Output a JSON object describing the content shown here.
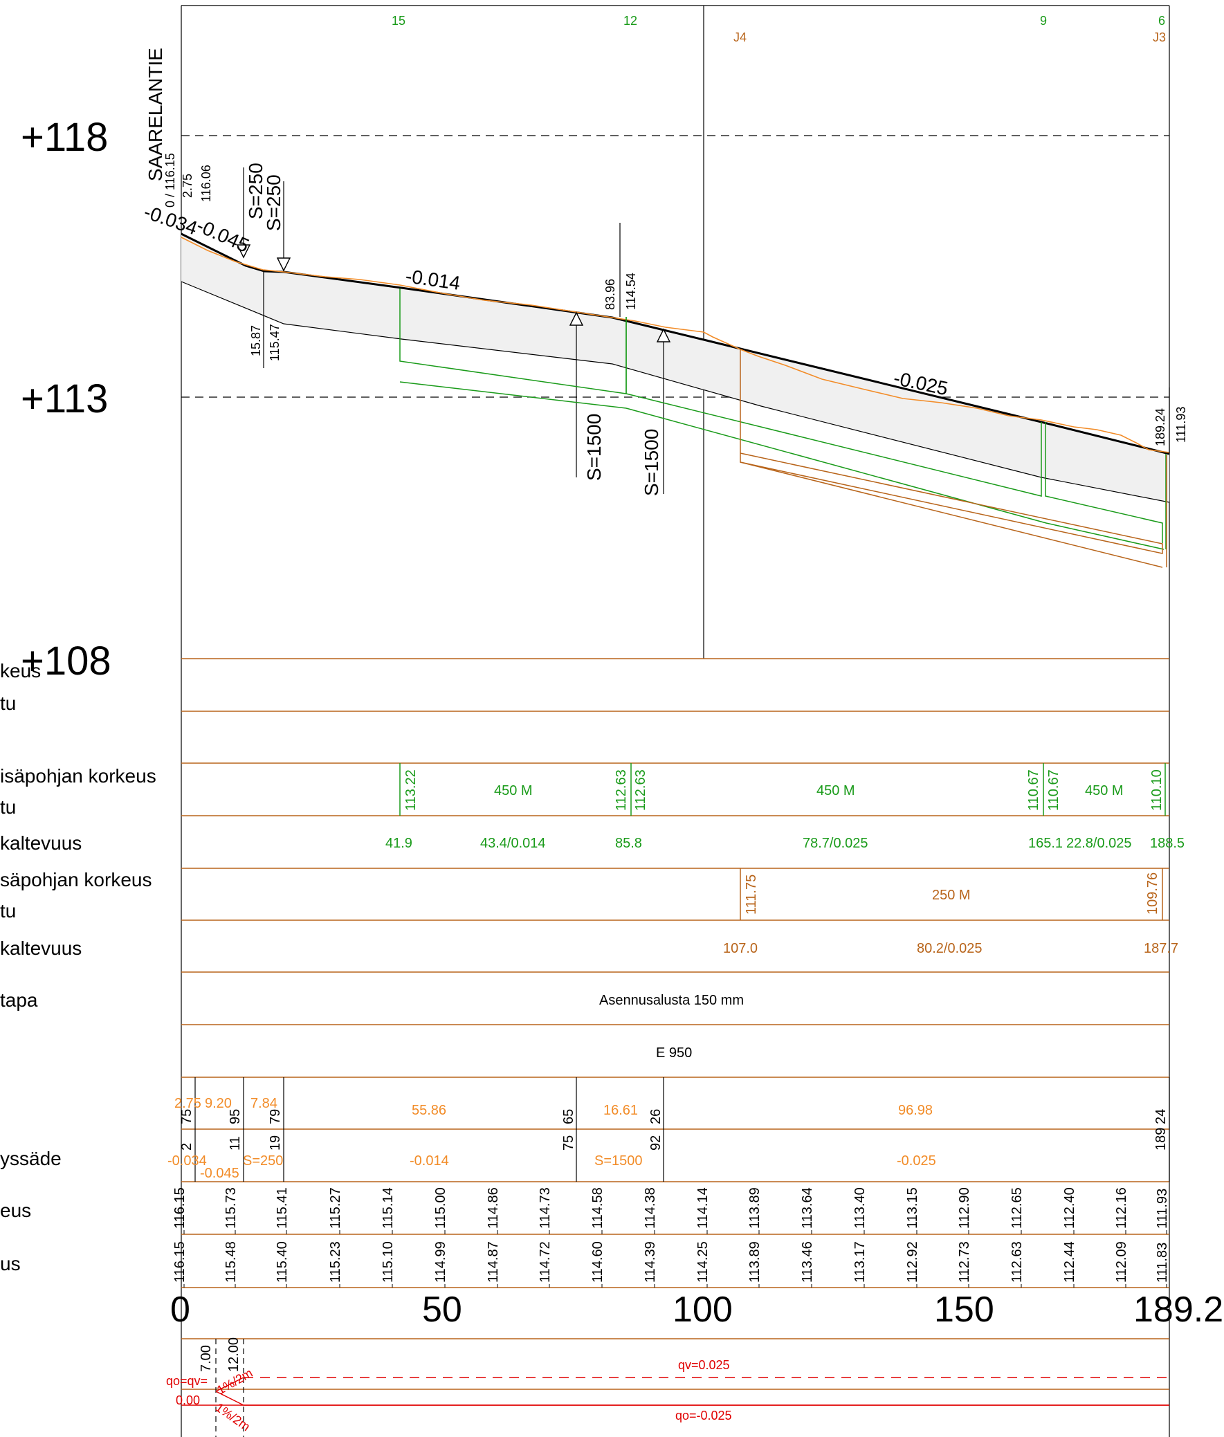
{
  "road_name": "SAARELANTIE",
  "elevations": [
    "+118",
    "+113",
    "+108"
  ],
  "top_labels": [
    {
      "text": "15",
      "color": "#1a9b1a"
    },
    {
      "text": "12",
      "color": "#1a9b1a"
    },
    {
      "text": "J4",
      "color": "#b8641a"
    },
    {
      "text": "9",
      "color": "#1a9b1a"
    },
    {
      "text": "6",
      "color": "#1a9b1a"
    },
    {
      "text": "J3",
      "color": "#b8641a"
    }
  ],
  "profile_labels": {
    "start_values": [
      "0 / 116.15",
      "2.75",
      "116.06"
    ],
    "radius_1": [
      "S=250",
      "S=250"
    ],
    "slope_start": "-0.034",
    "slope_second": "-0.045",
    "slope_mid": "-0.014",
    "low_pair": [
      "15.87",
      "115.47"
    ],
    "mid_pair": [
      "83.96",
      "114.54"
    ],
    "radius_2a": "S=1500",
    "radius_2b": "S=1500",
    "slope_end": "-0.025",
    "end_pair": [
      "189.24",
      "111.93"
    ]
  },
  "row_labels": [
    "keus",
    "tu",
    "isäpohjan korkeus",
    "tu",
    "kaltevuus",
    "säpohjan korkeus",
    "tu",
    "kaltevuus",
    "tapa",
    "yssäde",
    "eus",
    "us"
  ],
  "green_pipe": {
    "heights": [
      "113.22",
      "112.63",
      "112.63",
      "110.67",
      "110.67",
      "110.10"
    ],
    "pipe_labels": [
      "450 M",
      "450 M",
      "450 M"
    ],
    "stations": [
      "41.9",
      "85.8",
      "165.1",
      "188.5"
    ],
    "length_slopes": [
      "43.4/0.014",
      "78.7/0.025",
      "22.8/0.025"
    ]
  },
  "brown_pipe": {
    "heights": [
      "111.75",
      "109.76"
    ],
    "pipe_label": "250 M",
    "stations": [
      "107.0",
      "187.7"
    ],
    "length_slope": "80.2/0.025"
  },
  "installation": "Asennusalusta 150 mm",
  "class_label": "E 950",
  "geometry_rows": {
    "lengths": [
      "2.75",
      "9.20",
      "7.84",
      "55.86",
      "16.61",
      "96.98"
    ],
    "station_marks_top": [
      "75",
      "95",
      "79",
      "65",
      "26",
      "24"
    ],
    "station_marks_bottom": [
      "2",
      "11",
      "19",
      "75",
      "92",
      "189"
    ],
    "slope_values": [
      "-0.034",
      "-0.045",
      "S=250",
      "-0.014",
      "S=1500",
      "-0.025"
    ]
  },
  "level_rows": {
    "design": [
      "116.15",
      "116.15",
      "115.73",
      "115.41",
      "115.27",
      "115.14",
      "115.00",
      "114.86",
      "114.73",
      "114.58",
      "114.38",
      "114.14",
      "113.89",
      "113.64",
      "113.40",
      "113.15",
      "112.90",
      "112.65",
      "112.40",
      "112.16",
      "111.93"
    ],
    "existing": [
      "116.15",
      "115.48",
      "115.40",
      "115.23",
      "115.10",
      "114.99",
      "114.87",
      "114.72",
      "114.60",
      "114.39",
      "114.25",
      "113.89",
      "113.46",
      "113.17",
      "112.92",
      "112.73",
      "112.63",
      "112.44",
      "112.09",
      "111.83"
    ]
  },
  "axis_labels": [
    "0",
    "50",
    "100",
    "150",
    "189.2"
  ],
  "crossfall": {
    "offsets": [
      "7.00",
      "12.00"
    ],
    "labels_left": [
      "qo=qv=",
      "0.00"
    ],
    "slope_a": "1%/2m",
    "slope_b": "1%/2m",
    "qv": "qv=0.025",
    "qo": "qo=-0.025"
  }
}
